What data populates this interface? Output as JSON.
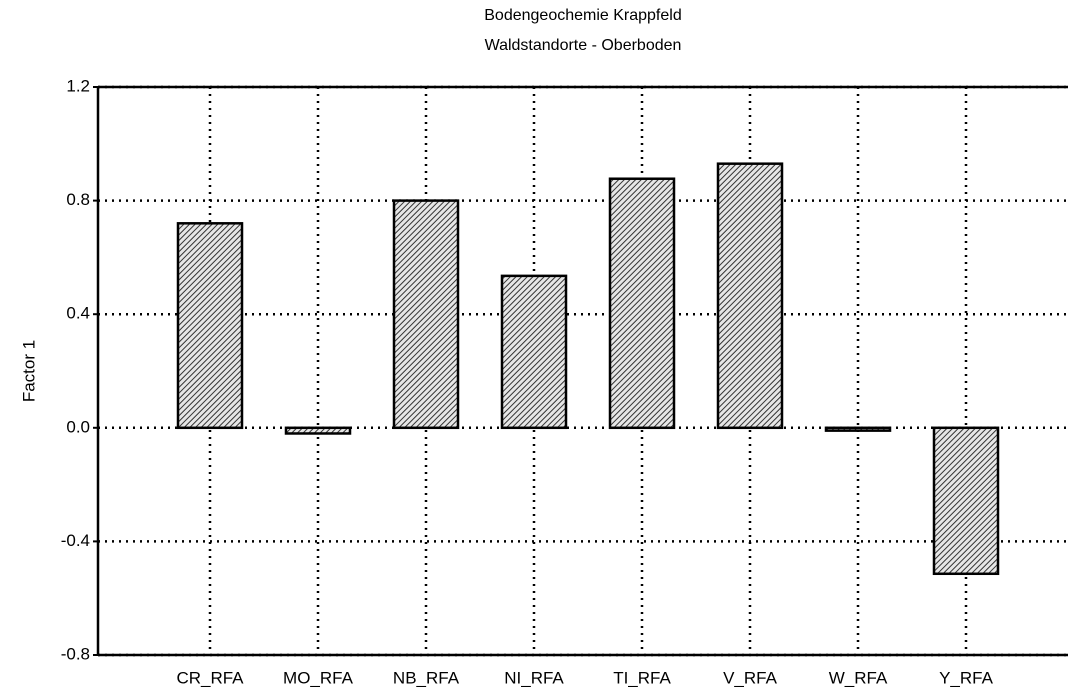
{
  "chart_data": {
    "type": "bar",
    "title": "Bodengeochemie Krappfeld",
    "subtitle": "Waldstandorte - Oberboden",
    "y_label": "Factor 1",
    "categories": [
      "CR_RFA",
      "MO_RFA",
      "NB_RFA",
      "NI_RFA",
      "TI_RFA",
      "V_RFA",
      "W_RFA",
      "Y_RFA"
    ],
    "values": [
      0.72,
      -0.02,
      0.8,
      0.535,
      0.877,
      0.93,
      -0.01,
      -0.514
    ],
    "color": "#555555",
    "ylim": [
      -0.8,
      1.2
    ],
    "yticks": [
      -0.8,
      -0.4,
      {
        "value": 0,
        "label": "0.0"
      },
      0.4,
      0.8,
      1.2
    ],
    "grid": true
  }
}
